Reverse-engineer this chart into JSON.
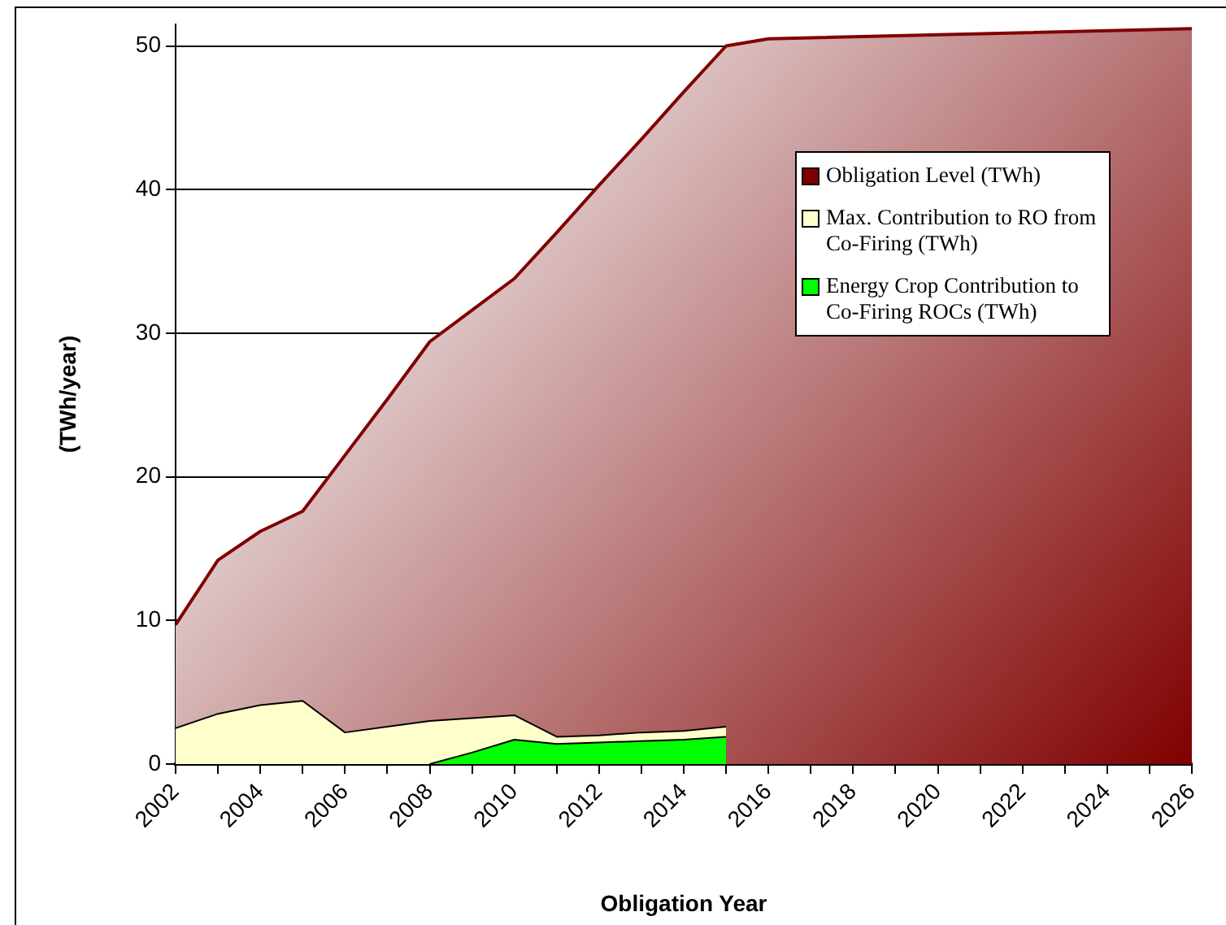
{
  "chart_data": {
    "type": "area",
    "xlabel": "Obligation Year",
    "ylabel": "(TWh/year)",
    "xlim": [
      2002,
      2026
    ],
    "ylim": [
      0,
      51.5
    ],
    "xticks": [
      2002,
      {
        "value": 2003,
        "label": null
      },
      2004,
      {
        "value": 2005,
        "label": null
      },
      2006,
      {
        "value": 2007,
        "label": null
      },
      2008,
      {
        "value": 2009,
        "label": null
      },
      2010,
      {
        "value": 2011,
        "label": null
      },
      2012,
      {
        "value": 2013,
        "label": null
      },
      2014,
      {
        "value": 2015,
        "label": null
      },
      2016,
      {
        "value": 2017,
        "label": null
      },
      2018,
      {
        "value": 2019,
        "label": null
      },
      2020,
      {
        "value": 2021,
        "label": null
      },
      2022,
      {
        "value": 2023,
        "label": null
      },
      2024,
      {
        "value": 2025,
        "label": null
      },
      2026
    ],
    "yticks": [
      0,
      10,
      20,
      30,
      40,
      50
    ],
    "grid": "y",
    "legend": "top right",
    "series": [
      {
        "name": "Obligation Level (TWh)",
        "color": "#800000",
        "x": [
          2002,
          2003,
          2004,
          2005,
          2006,
          2007,
          2008,
          2009,
          2010,
          2011,
          2012,
          2013,
          2014,
          2015,
          2016,
          2026
        ],
        "values": [
          9.7,
          14.2,
          16.2,
          17.6,
          21.5,
          25.4,
          29.4,
          31.6,
          33.8,
          37.0,
          40.3,
          43.5,
          46.8,
          50.0,
          50.5,
          51.2
        ]
      },
      {
        "name": "Max. Contribution to RO from Co-Firing (TWh)",
        "color": "#ffffcc",
        "x": [
          2002,
          2003,
          2004,
          2005,
          2006,
          2007,
          2008,
          2009,
          2010,
          2011,
          2012,
          2013,
          2014,
          2015
        ],
        "values": [
          2.5,
          3.5,
          4.1,
          4.4,
          2.2,
          2.6,
          3.0,
          3.2,
          3.4,
          1.9,
          2.0,
          2.2,
          2.3,
          2.6
        ]
      },
      {
        "name": "Energy Crop Contribution to Co-Firing ROCs (TWh)",
        "color": "#00ff00",
        "x": [
          2008,
          2009,
          2010,
          2011,
          2012,
          2013,
          2014,
          2015
        ],
        "values": [
          0,
          0.8,
          1.7,
          1.4,
          1.5,
          1.6,
          1.7,
          1.9
        ]
      }
    ]
  }
}
